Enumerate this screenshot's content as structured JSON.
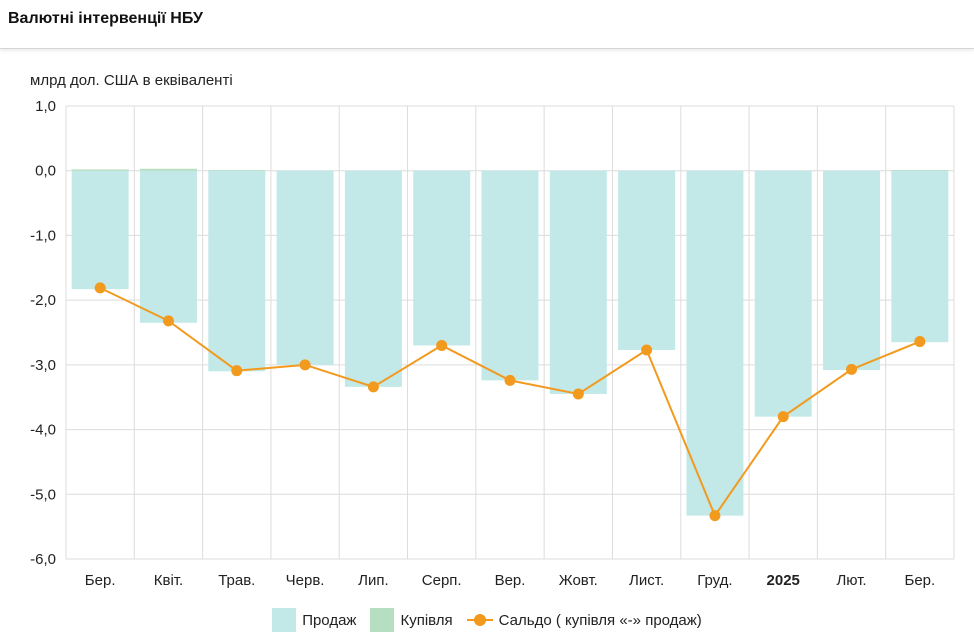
{
  "header": {
    "title": "Валютні інтервенції НБУ"
  },
  "chart_data": {
    "type": "bar",
    "title": "Валютні інтервенції НБУ",
    "ylabel": "млрд дол. США в еквіваленті",
    "xlabel": "",
    "ylim": [
      -6.0,
      1.0
    ],
    "yticks": [
      1.0,
      0.0,
      -1.0,
      -2.0,
      -3.0,
      -4.0,
      -5.0,
      -6.0
    ],
    "ytick_labels": [
      "1,0",
      "0,0",
      "-1,0",
      "-2,0",
      "-3,0",
      "-4,0",
      "-5,0",
      "-6,0"
    ],
    "categories": [
      "Бер.",
      "Квіт.",
      "Трав.",
      "Черв.",
      "Лип.",
      "Серп.",
      "Вер.",
      "Жовт.",
      "Лист.",
      "Груд.",
      "2025",
      "Лют.",
      "Бер."
    ],
    "bold_categories": [
      "2025"
    ],
    "grid": true,
    "legend_position": "bottom",
    "series": [
      {
        "name": "Продаж",
        "kind": "bar",
        "color": "#c2e9e8",
        "values": [
          -1.83,
          -2.35,
          -3.1,
          -3.0,
          -3.34,
          -2.7,
          -3.24,
          -3.45,
          -2.77,
          -5.33,
          -3.8,
          -3.08,
          -2.65
        ]
      },
      {
        "name": "Купівля",
        "kind": "bar",
        "color": "#b5dfc0",
        "values": [
          0.02,
          0.03,
          0.01,
          0.0,
          0.0,
          0.0,
          0.0,
          0.0,
          0.0,
          0.0,
          0.0,
          0.0,
          0.01
        ]
      },
      {
        "name": "Сальдо ( купівля «-» продаж)",
        "kind": "line",
        "color": "#f29a1e",
        "values": [
          -1.81,
          -2.32,
          -3.09,
          -3.0,
          -3.34,
          -2.7,
          -3.24,
          -3.45,
          -2.77,
          -5.33,
          -3.8,
          -3.07,
          -2.64
        ]
      }
    ]
  }
}
